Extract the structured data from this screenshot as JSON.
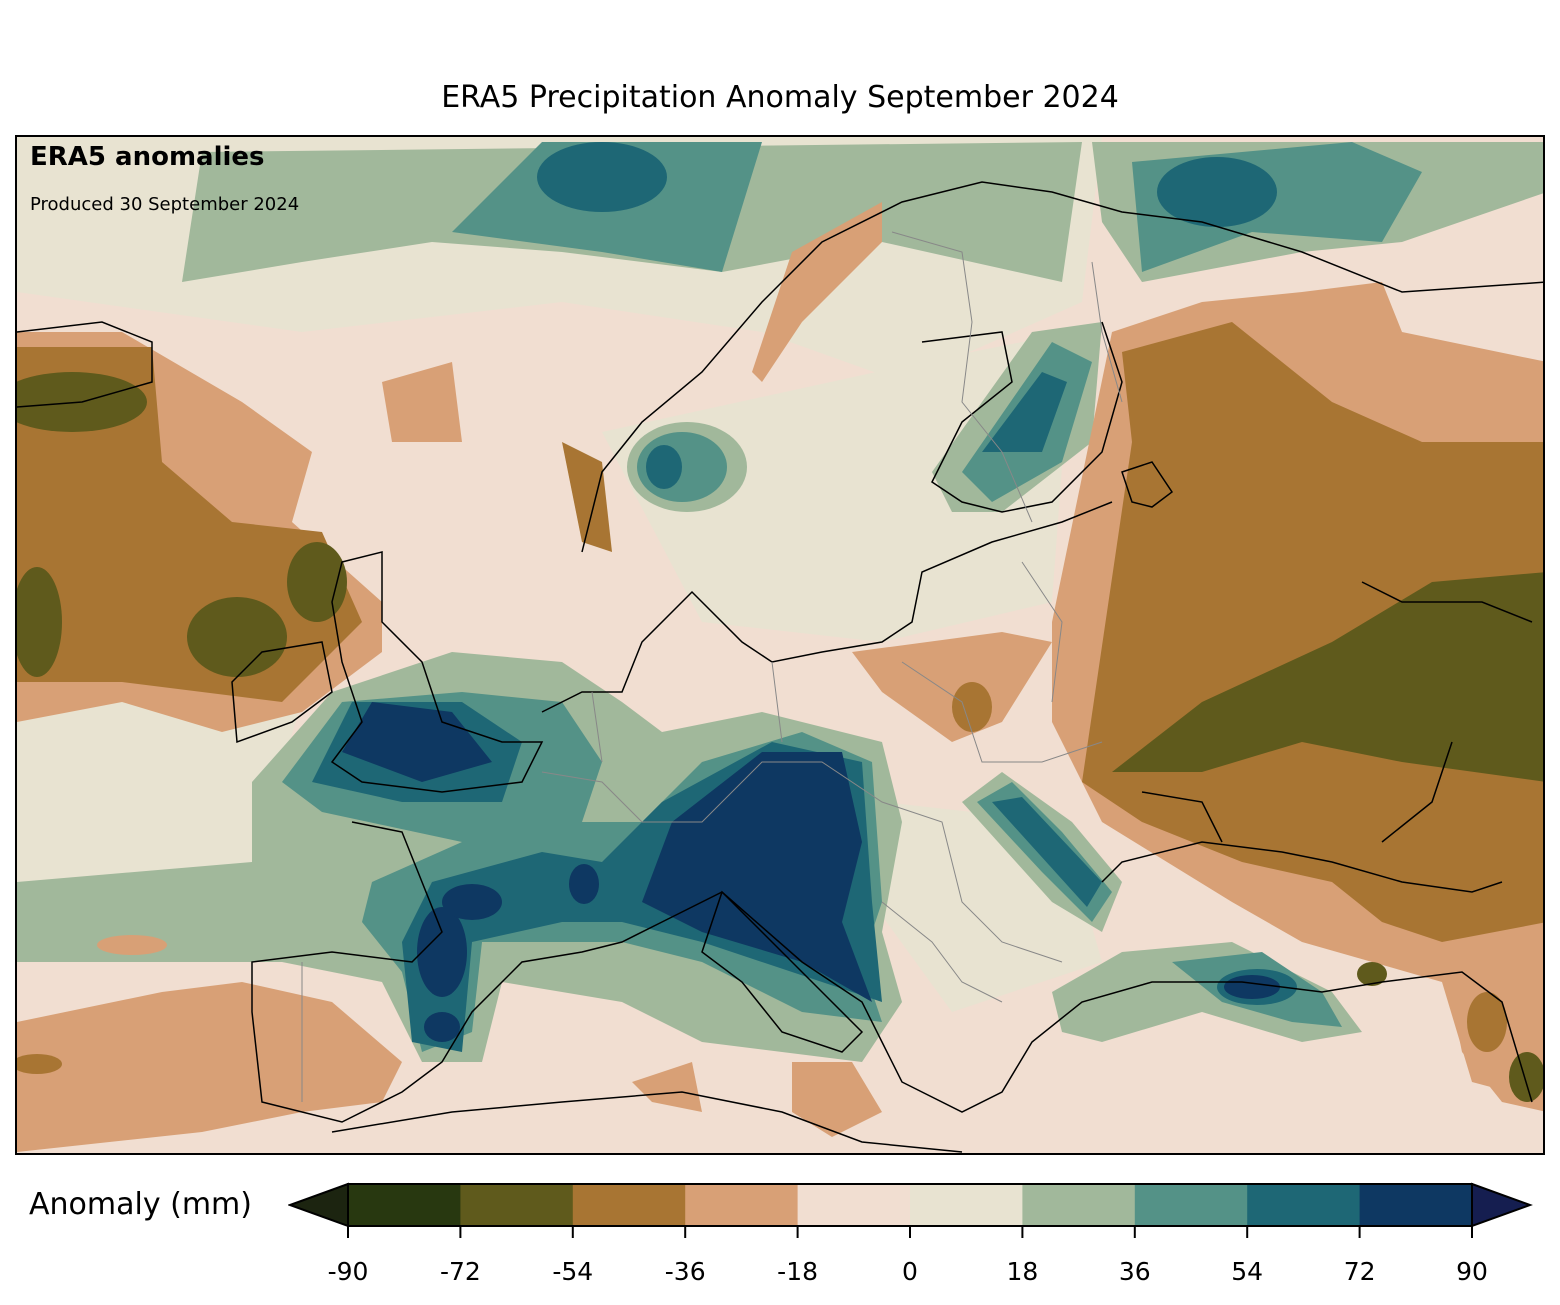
{
  "title": "ERA5 Precipitation Anomaly September 2024",
  "annotation": {
    "heading": "ERA5 anomalies",
    "produced": "Produced 30 September 2024"
  },
  "colorbar": {
    "label": "Anomaly (mm)",
    "ticks": [
      "-90",
      "-72",
      "-54",
      "-36",
      "-18",
      "0",
      "18",
      "36",
      "54",
      "72",
      "90"
    ],
    "levels": [
      -90,
      -72,
      -54,
      -36,
      -18,
      0,
      18,
      36,
      54,
      72,
      90
    ],
    "colors": [
      "#283810",
      "#5f5a1c",
      "#a87533",
      "#d8a076",
      "#f1ded1",
      "#e8e3d1",
      "#a1b89b",
      "#549287",
      "#1e6775",
      "#0e3862"
    ],
    "under_color": "#1c2410",
    "over_color": "#151e50",
    "extend": "both"
  }
}
